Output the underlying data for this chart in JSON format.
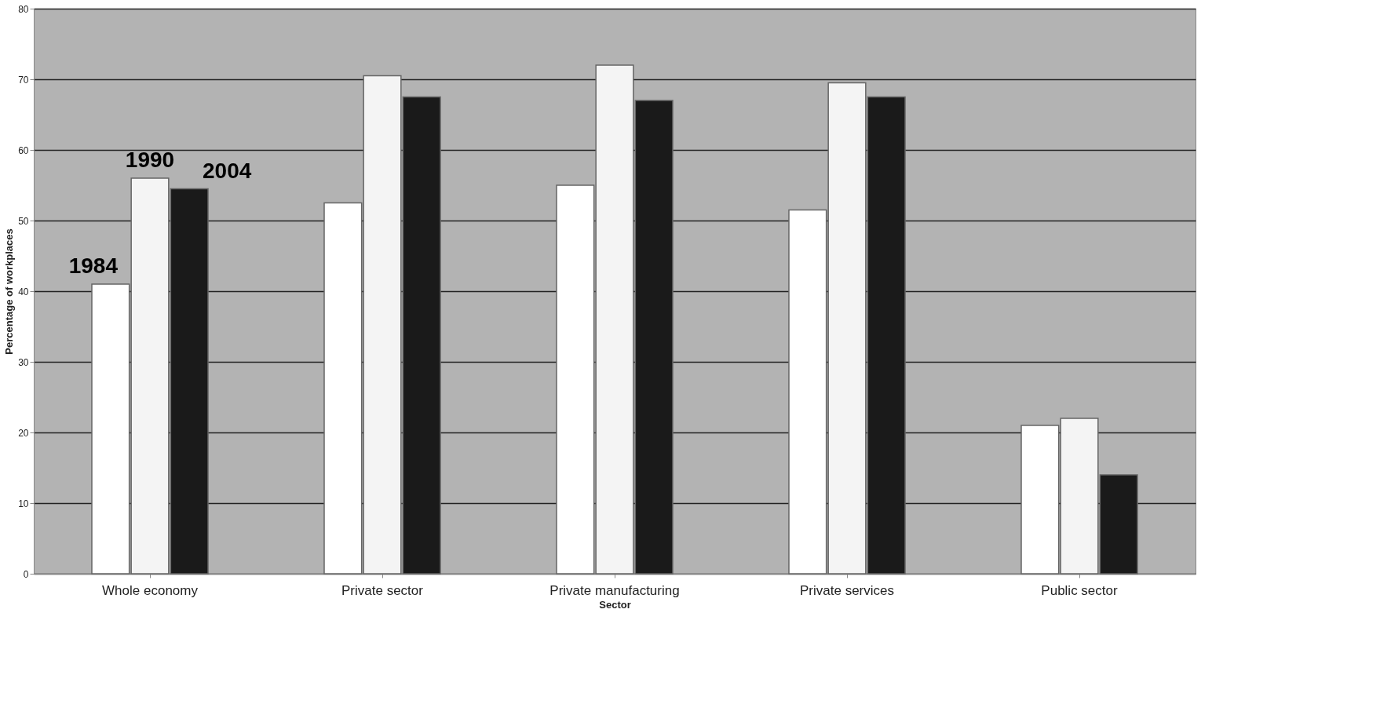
{
  "chart_data": {
    "type": "bar",
    "xlabel": "Sector",
    "ylabel": "Percentage of workplaces",
    "categories": [
      "Whole economy",
      "Private sector",
      "Private manufacturing",
      "Private services",
      "Public sector"
    ],
    "series": [
      {
        "name": "1984",
        "color": "#ffffff",
        "values": [
          41,
          52.5,
          55,
          51.5,
          21
        ]
      },
      {
        "name": "1990",
        "color": "#f4f4f4",
        "values": [
          56,
          70.5,
          72,
          69.5,
          22
        ]
      },
      {
        "name": "2004",
        "color": "#1a1a1a",
        "values": [
          54.5,
          67.5,
          67,
          67.5,
          14
        ]
      }
    ],
    "ylim": [
      0,
      80
    ],
    "yticks": [
      0,
      10,
      20,
      30,
      40,
      50,
      60,
      70,
      80
    ],
    "grid": "y",
    "legend": false
  }
}
